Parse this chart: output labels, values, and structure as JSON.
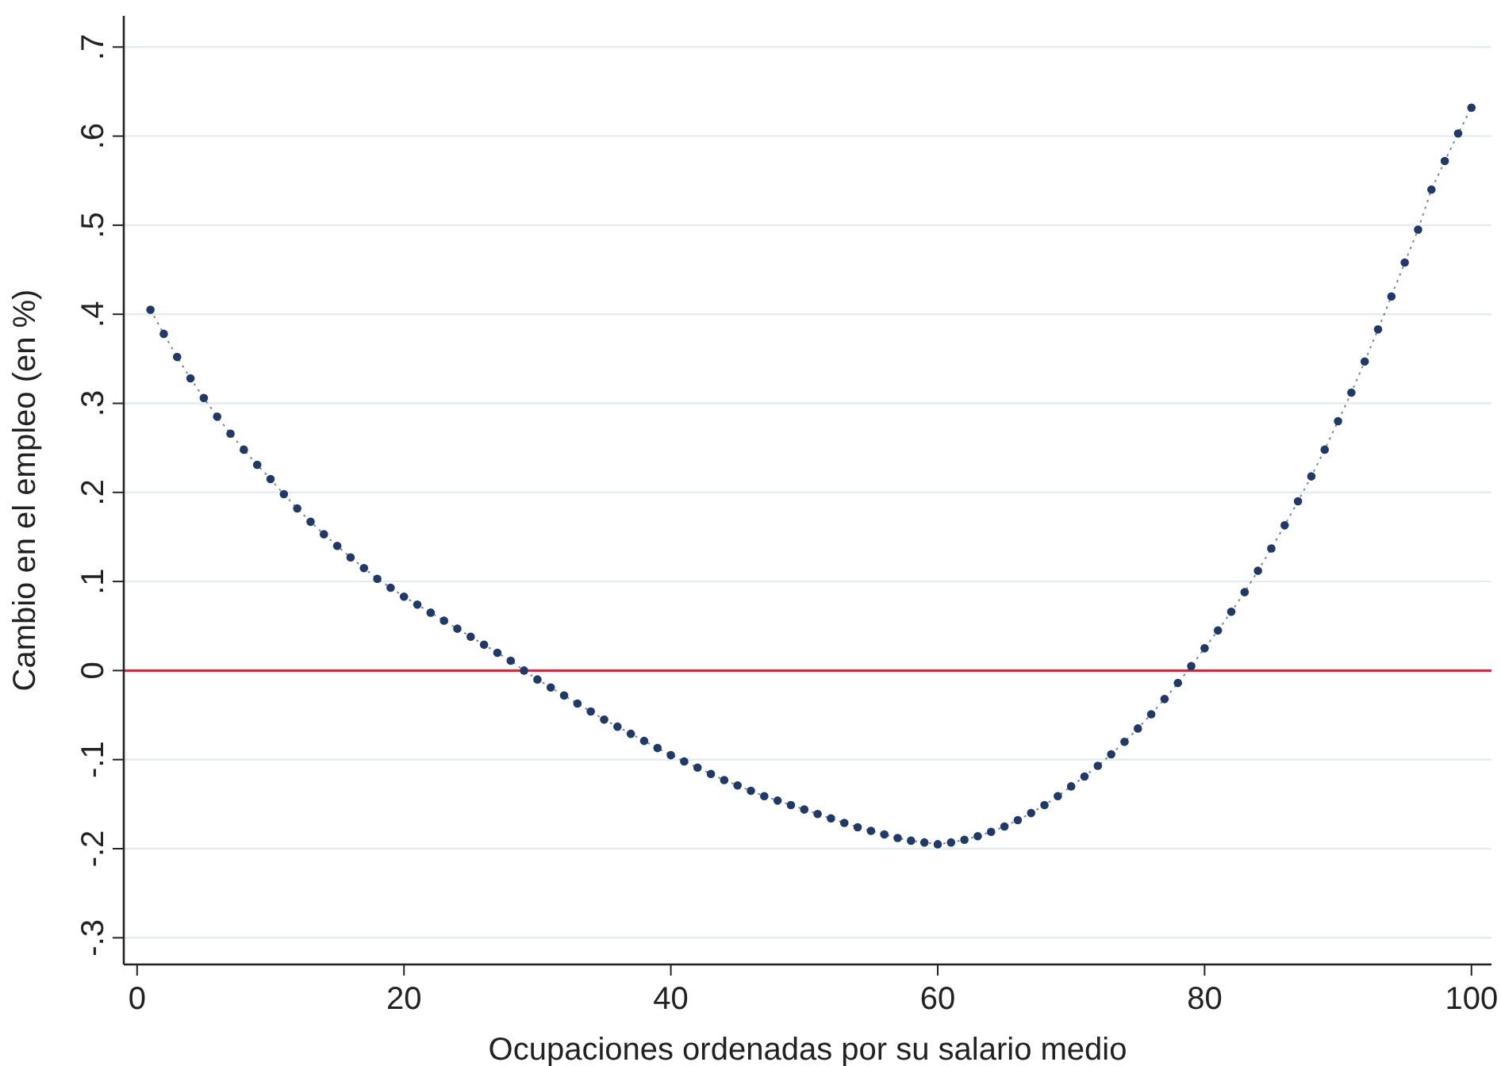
{
  "chart_data": {
    "type": "line",
    "xlabel": "Ocupaciones ordenadas por su salario medio",
    "ylabel": "Cambio en el empleo (en %)",
    "x": [
      1,
      2,
      3,
      4,
      5,
      6,
      7,
      8,
      9,
      10,
      11,
      12,
      13,
      14,
      15,
      16,
      17,
      18,
      19,
      20,
      21,
      22,
      23,
      24,
      25,
      26,
      27,
      28,
      29,
      30,
      31,
      32,
      33,
      34,
      35,
      36,
      37,
      38,
      39,
      40,
      41,
      42,
      43,
      44,
      45,
      46,
      47,
      48,
      49,
      50,
      51,
      52,
      53,
      54,
      55,
      56,
      57,
      58,
      59,
      60,
      61,
      62,
      63,
      64,
      65,
      66,
      67,
      68,
      69,
      70,
      71,
      72,
      73,
      74,
      75,
      76,
      77,
      78,
      79,
      80,
      81,
      82,
      83,
      84,
      85,
      86,
      87,
      88,
      89,
      90,
      91,
      92,
      93,
      94,
      95,
      96,
      97,
      98,
      99,
      100
    ],
    "series": [
      {
        "color": "#1f3a68",
        "values": [
          0.405,
          0.378,
          0.352,
          0.328,
          0.306,
          0.285,
          0.266,
          0.248,
          0.231,
          0.215,
          0.198,
          0.182,
          0.167,
          0.153,
          0.14,
          0.127,
          0.115,
          0.103,
          0.093,
          0.083,
          0.074,
          0.065,
          0.056,
          0.047,
          0.038,
          0.029,
          0.02,
          0.011,
          0.0,
          -0.01,
          -0.019,
          -0.028,
          -0.037,
          -0.046,
          -0.055,
          -0.063,
          -0.071,
          -0.079,
          -0.087,
          -0.095,
          -0.102,
          -0.109,
          -0.116,
          -0.123,
          -0.129,
          -0.135,
          -0.141,
          -0.146,
          -0.151,
          -0.156,
          -0.161,
          -0.166,
          -0.171,
          -0.176,
          -0.18,
          -0.184,
          -0.188,
          -0.191,
          -0.193,
          -0.195,
          -0.193,
          -0.19,
          -0.186,
          -0.181,
          -0.175,
          -0.168,
          -0.16,
          -0.151,
          -0.141,
          -0.13,
          -0.119,
          -0.107,
          -0.094,
          -0.08,
          -0.065,
          -0.049,
          -0.032,
          -0.014,
          0.005,
          0.025,
          0.045,
          0.066,
          0.088,
          0.112,
          0.137,
          0.163,
          0.19,
          0.218,
          0.248,
          0.28,
          0.312,
          0.347,
          0.383,
          0.42,
          0.458,
          0.495,
          0.54,
          0.572,
          0.603,
          0.632
        ]
      }
    ],
    "xlim": [
      -1,
      101.5
    ],
    "xticks": [
      0,
      20,
      40,
      60,
      80,
      100
    ],
    "ylim": [
      -0.33,
      0.735
    ],
    "yticks": [
      {
        "value": -0.3,
        "label": "-.3"
      },
      {
        "value": -0.2,
        "label": "-.2"
      },
      {
        "value": -0.1,
        "label": "-.1"
      },
      0,
      {
        "value": 0.1,
        "label": ".1"
      },
      {
        "value": 0.2,
        "label": ".2"
      },
      {
        "value": 0.3,
        "label": ".3"
      },
      {
        "value": 0.4,
        "label": ".4"
      },
      {
        "value": 0.5,
        "label": ".5"
      },
      {
        "value": 0.6,
        "label": ".6"
      },
      {
        "value": 0.7,
        "label": ".7"
      }
    ],
    "grid": "y",
    "marker": "circle",
    "line_style": "dotted",
    "ref_lines": [
      {
        "axis": "y",
        "value": 0,
        "color": "#d62a3c"
      }
    ]
  }
}
